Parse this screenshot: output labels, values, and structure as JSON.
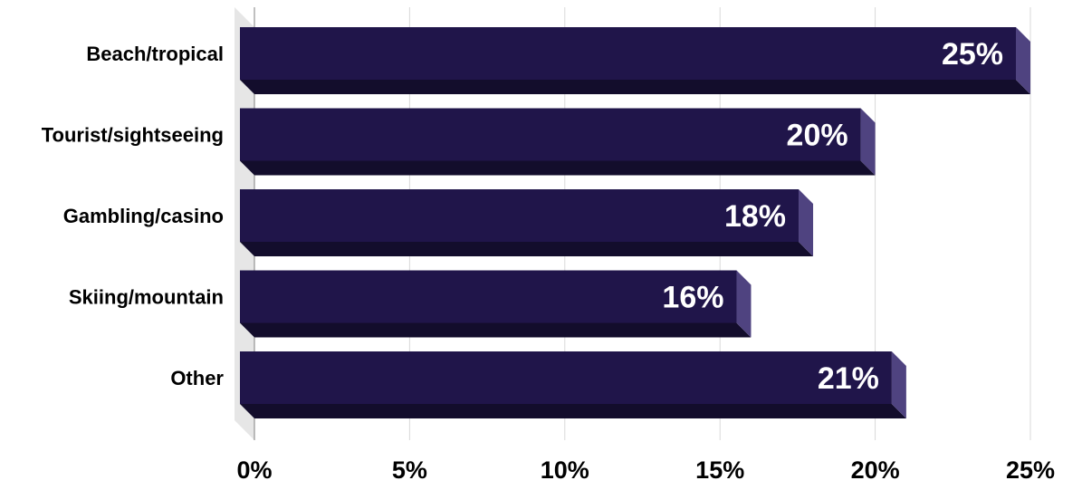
{
  "chart_data": {
    "type": "bar",
    "orientation": "horizontal",
    "style": "3d",
    "categories": [
      "Beach/tropical",
      "Tourist/sightseeing",
      "Gambling/casino",
      "Skiing/mountain",
      "Other"
    ],
    "values": [
      25,
      20,
      18,
      16,
      21
    ],
    "value_labels": [
      "25%",
      "20%",
      "18%",
      "16%",
      "21%"
    ],
    "xlim": [
      0,
      25
    ],
    "xticks": [
      0,
      5,
      10,
      15,
      20,
      25
    ],
    "xtick_labels": [
      "0%",
      "5%",
      "10%",
      "15%",
      "20%",
      "25%"
    ],
    "grid": "vertical",
    "legend": "none",
    "colors": {
      "bar_front": "#20154a",
      "bar_side": "#4f4380",
      "bar_bottom": "#130d2c",
      "gridline": "#d9d9d9",
      "wall": "#e6e6e6",
      "data_label": "#ffffff"
    }
  }
}
